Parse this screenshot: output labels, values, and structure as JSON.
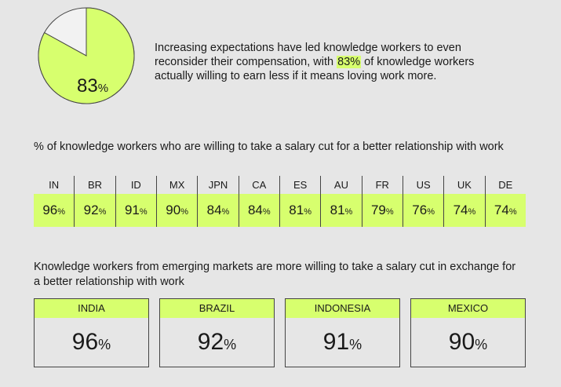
{
  "intro": {
    "text_before": "Increasing expectations have led knowledge workers to even reconsider their compensation, with ",
    "highlight": "83%",
    "text_after": " of knowledge workers actually willing to earn less if it means loving work more."
  },
  "colors": {
    "accent": "#d7ff6e",
    "background": "#e6e6e6",
    "pie_rest": "#f2f2f2",
    "stroke": "#444444"
  },
  "chart_data": [
    {
      "type": "pie",
      "slices": [
        {
          "label": "",
          "value": 83
        },
        {
          "label": "",
          "value": 17
        }
      ],
      "value_label": "83",
      "unit": "%"
    },
    {
      "type": "table",
      "title": "% of knowledge workers who are willing to take a salary cut for a better relationship with work",
      "categories": [
        "IN",
        "BR",
        "ID",
        "MX",
        "JPN",
        "CA",
        "ES",
        "AU",
        "FR",
        "US",
        "UK",
        "DE"
      ],
      "values": [
        96,
        92,
        91,
        90,
        84,
        84,
        81,
        81,
        79,
        76,
        74,
        74
      ],
      "unit": "%"
    },
    {
      "type": "table",
      "title": "Knowledge workers from emerging markets are more willing to take a salary cut in exchange for a better relationship with work",
      "categories": [
        "INDIA",
        "BRAZIL",
        "INDONESIA",
        "MEXICO"
      ],
      "values": [
        96,
        92,
        91,
        90
      ],
      "unit": "%"
    }
  ]
}
